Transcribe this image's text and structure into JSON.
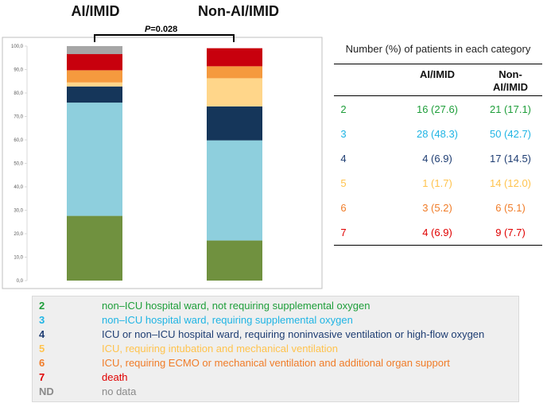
{
  "group_titles": {
    "ai": "AI/IMID",
    "non_ai": "Non-AI/IMID"
  },
  "pvalue": {
    "label": "P",
    "value": "=0.028"
  },
  "colors": {
    "2": "#70913f",
    "3": "#8ecfdd",
    "4": "#15365a",
    "5": "#ffd68a",
    "6": "#f59a3e",
    "7": "#c8000d",
    "ND": "#a6a6a6",
    "t2": "#1e9e3a",
    "t3": "#1fb4e4",
    "t4": "#1f3e73",
    "t5": "#ffc34d",
    "t6": "#f07c28",
    "t7": "#e00000",
    "tND": "#8a8a8a"
  },
  "chart_data": {
    "type": "bar",
    "stacked": true,
    "categories": [
      "AI/IMID",
      "Non-AI/IMID"
    ],
    "series": [
      {
        "name": "2",
        "values": [
          27.6,
          17.1
        ]
      },
      {
        "name": "3",
        "values": [
          48.3,
          42.7
        ]
      },
      {
        "name": "4",
        "values": [
          6.9,
          14.5
        ]
      },
      {
        "name": "5",
        "values": [
          1.7,
          12.0
        ]
      },
      {
        "name": "6",
        "values": [
          5.2,
          5.1
        ]
      },
      {
        "name": "7",
        "values": [
          6.9,
          7.7
        ]
      },
      {
        "name": "ND",
        "values": [
          3.4,
          0
        ]
      }
    ],
    "ylim": [
      0,
      100
    ],
    "yticks": [
      "0,0",
      "10,0",
      "20,0",
      "30,0",
      "40,0",
      "50,0",
      "60,0",
      "70,0",
      "80,0",
      "90,0",
      "100,0"
    ],
    "title": "",
    "xlabel": "",
    "ylabel": ""
  },
  "table": {
    "title": "Number (%) of patients in each category",
    "headers": {
      "ai": "AI/IMID",
      "non_ai_1": "Non-",
      "non_ai_2": "AI/IMID"
    },
    "rows": [
      {
        "cat": "2",
        "ai": "16 (27.6)",
        "non": "21 (17.1)"
      },
      {
        "cat": "3",
        "ai": "28 (48.3)",
        "non": "50 (42.7)"
      },
      {
        "cat": "4",
        "ai": "4 (6.9)",
        "non": "17 (14.5)"
      },
      {
        "cat": "5",
        "ai": "1 (1.7)",
        "non": "14 (12.0)"
      },
      {
        "cat": "6",
        "ai": "3 (5.2)",
        "non": "6 (5.1)"
      },
      {
        "cat": "7",
        "ai": "4 (6.9)",
        "non": "9 (7.7)"
      }
    ]
  },
  "legend": [
    {
      "code": "2",
      "text": "non–ICU hospital ward, not requiring supplemental oxygen"
    },
    {
      "code": "3",
      "text": "non–ICU hospital ward, requiring supplemental oxygen"
    },
    {
      "code": "4",
      "text": "ICU or non–ICU hospital ward, requiring noninvasive ventilation or high-flow oxygen"
    },
    {
      "code": "5",
      "text": "ICU, requiring intubation and mechanical ventilation"
    },
    {
      "code": "6",
      "text": "ICU, requiring ECMO or mechanical ventilation and additional organ support"
    },
    {
      "code": "7",
      "text": "death"
    },
    {
      "code": "ND",
      "text": "no data"
    }
  ]
}
